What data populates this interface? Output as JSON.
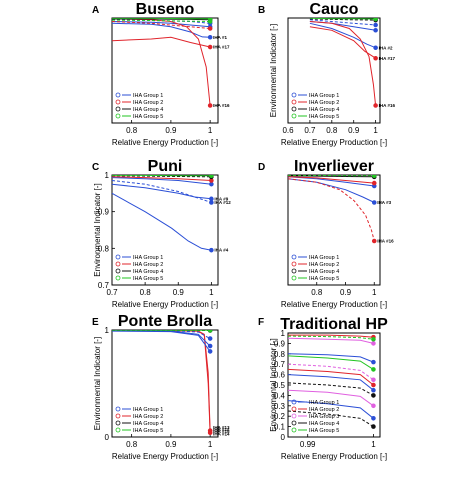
{
  "colors": {
    "group1": "#2b4fd6",
    "group2": "#e0242b",
    "group3": "#e060e0",
    "group4": "#111111",
    "group5": "#22c522"
  },
  "chart_data": [
    {
      "type": "line",
      "letter": "A",
      "title": "Buseno",
      "xlabel": "Relative Energy Production [-]",
      "ylabel": "",
      "xlim": [
        0.75,
        1.02
      ],
      "ylim": [
        0.7,
        1.0
      ],
      "xticks": [
        "0.8",
        "0.9",
        "1"
      ],
      "yticks": [],
      "legend": [
        "IHA Group 1",
        "IHA Group 2",
        "IHA Group 4",
        "IHA Group 5"
      ],
      "annotations": [
        {
          "text": "IHA #1",
          "x": 1.0,
          "y": 0.945
        },
        {
          "text": "IHA #17",
          "x": 1.0,
          "y": 0.917
        },
        {
          "text": "IHA #16",
          "x": 1.0,
          "y": 0.75
        }
      ],
      "series": [
        {
          "group": "group1",
          "x": [
            0.75,
            0.85,
            0.9,
            0.95,
            0.98,
            1.0
          ],
          "y": [
            0.985,
            0.982,
            0.975,
            0.96,
            0.946,
            0.945
          ]
        },
        {
          "group": "group1",
          "x": [
            0.75,
            0.85,
            0.9,
            0.95,
            1.0
          ],
          "y": [
            0.99,
            0.988,
            0.985,
            0.98,
            0.975
          ]
        },
        {
          "group": "group1",
          "x": [
            0.75,
            0.85,
            0.95,
            1.0
          ],
          "y": [
            0.995,
            0.993,
            0.99,
            0.985
          ]
        },
        {
          "group": "group2",
          "x": [
            0.75,
            0.85,
            0.9,
            0.94,
            0.97,
            0.99,
            1.0
          ],
          "y": [
            0.998,
            0.995,
            0.99,
            0.975,
            0.94,
            0.86,
            0.75
          ]
        },
        {
          "group": "group2",
          "x": [
            0.75,
            0.85,
            0.9,
            0.95,
            1.0
          ],
          "y": [
            0.935,
            0.94,
            0.945,
            0.93,
            0.917
          ]
        },
        {
          "group": "group2",
          "x": [
            0.75,
            0.85,
            0.95,
            1.0
          ],
          "y": [
            0.99,
            0.985,
            0.975,
            0.97
          ]
        },
        {
          "group": "group4",
          "x": [
            0.75,
            0.85,
            0.95,
            1.0
          ],
          "y": [
            0.997,
            0.997,
            0.996,
            0.995
          ]
        },
        {
          "group": "group5",
          "x": [
            0.75,
            0.85,
            0.95,
            1.0
          ],
          "y": [
            0.999,
            0.999,
            0.998,
            0.998
          ]
        },
        {
          "group": "group5",
          "x": [
            0.75,
            0.85,
            0.95,
            1.0
          ],
          "y": [
            0.994,
            0.993,
            0.991,
            0.99
          ]
        }
      ]
    },
    {
      "type": "line",
      "letter": "B",
      "title": "Cauco",
      "xlabel": "Relative Energy Production [-]",
      "ylabel": "Environmental Indicator [-]",
      "xlim": [
        0.6,
        1.02
      ],
      "ylim": [
        0.7,
        1.0
      ],
      "xticks": [
        "0.6",
        "0.7",
        "0.8",
        "0.9",
        "1"
      ],
      "yticks": [],
      "legend": [
        "IHA Group 1",
        "IHA Group 2",
        "IHA Group 4",
        "IHA Group 5"
      ],
      "annotations": [
        {
          "text": "IHA #2",
          "x": 1.0,
          "y": 0.915
        },
        {
          "text": "IHA #17",
          "x": 1.0,
          "y": 0.885
        },
        {
          "text": "IHA #16",
          "x": 1.0,
          "y": 0.75
        }
      ],
      "series": [
        {
          "group": "group1",
          "x": [
            0.7,
            0.8,
            0.9,
            0.96,
            1.0
          ],
          "y": [
            0.985,
            0.97,
            0.945,
            0.925,
            0.915
          ]
        },
        {
          "group": "group1",
          "x": [
            0.7,
            0.8,
            0.9,
            1.0
          ],
          "y": [
            0.99,
            0.985,
            0.975,
            0.965
          ]
        },
        {
          "group": "group1",
          "x": [
            0.7,
            0.8,
            0.9,
            1.0
          ],
          "y": [
            0.995,
            0.99,
            0.985,
            0.98
          ]
        },
        {
          "group": "group2",
          "x": [
            0.7,
            0.8,
            0.88,
            0.93,
            0.97,
            0.99,
            1.0
          ],
          "y": [
            0.99,
            0.985,
            0.97,
            0.94,
            0.89,
            0.81,
            0.75
          ]
        },
        {
          "group": "group2",
          "x": [
            0.7,
            0.8,
            0.9,
            0.95,
            1.0
          ],
          "y": [
            0.975,
            0.965,
            0.935,
            0.905,
            0.885
          ]
        },
        {
          "group": "group4",
          "x": [
            0.7,
            0.8,
            0.9,
            1.0
          ],
          "y": [
            0.997,
            0.996,
            0.995,
            0.994
          ]
        },
        {
          "group": "group5",
          "x": [
            0.7,
            0.8,
            0.9,
            1.0
          ],
          "y": [
            0.999,
            0.998,
            0.998,
            0.997
          ]
        }
      ]
    },
    {
      "type": "line",
      "letter": "C",
      "title": "Puni",
      "xlabel": "Relative Energy Production [-]",
      "ylabel": "Environmental Indicator [-]",
      "xlim": [
        0.7,
        1.02
      ],
      "ylim": [
        0.7,
        1.0
      ],
      "xticks": [
        "0.7",
        "0.8",
        "0.9",
        "1"
      ],
      "yticks": [
        "0.7",
        "0.8",
        "0.9",
        "1"
      ],
      "legend": [
        "IHA Group 1",
        "IHA Group 2",
        "IHA Group 4",
        "IHA Group 5"
      ],
      "annotations": [
        {
          "text": "IHA #9",
          "x": 1.0,
          "y": 0.935
        },
        {
          "text": "IHA #12",
          "x": 1.0,
          "y": 0.925
        },
        {
          "text": "IHA #4",
          "x": 1.0,
          "y": 0.795
        }
      ],
      "series": [
        {
          "group": "group1",
          "x": [
            0.7,
            0.8,
            0.88,
            0.93,
            0.97,
            1.0
          ],
          "y": [
            0.95,
            0.9,
            0.855,
            0.82,
            0.8,
            0.795
          ]
        },
        {
          "group": "group1",
          "x": [
            0.7,
            0.8,
            0.9,
            0.95,
            1.0
          ],
          "y": [
            0.975,
            0.965,
            0.95,
            0.94,
            0.935
          ]
        },
        {
          "group": "group1",
          "x": [
            0.7,
            0.8,
            0.9,
            0.95,
            1.0
          ],
          "y": [
            0.985,
            0.975,
            0.955,
            0.94,
            0.925
          ]
        },
        {
          "group": "group1",
          "x": [
            0.7,
            0.8,
            0.9,
            1.0
          ],
          "y": [
            0.993,
            0.99,
            0.985,
            0.975
          ]
        },
        {
          "group": "group2",
          "x": [
            0.7,
            0.8,
            0.9,
            1.0
          ],
          "y": [
            0.995,
            0.993,
            0.99,
            0.985
          ]
        },
        {
          "group": "group4",
          "x": [
            0.7,
            0.8,
            0.9,
            1.0
          ],
          "y": [
            0.998,
            0.997,
            0.996,
            0.995
          ]
        },
        {
          "group": "group5",
          "x": [
            0.7,
            0.8,
            0.9,
            1.0
          ],
          "y": [
            0.999,
            0.999,
            0.998,
            0.998
          ]
        }
      ]
    },
    {
      "type": "line",
      "letter": "D",
      "title": "Inverliever",
      "xlabel": "Relative Energy Production [-]",
      "ylabel": "",
      "xlim": [
        0.7,
        1.02
      ],
      "ylim": [
        0.7,
        1.0
      ],
      "xticks": [
        "0.8",
        "0.9",
        "1"
      ],
      "yticks": [],
      "legend": [
        "IHA Group 1",
        "IHA Group 2",
        "IHA Group 4",
        "IHA Group 5"
      ],
      "annotations": [
        {
          "text": "IHA #3",
          "x": 1.0,
          "y": 0.925
        },
        {
          "text": "IHA #16",
          "x": 1.0,
          "y": 0.82
        }
      ],
      "series": [
        {
          "group": "group1",
          "x": [
            0.7,
            0.8,
            0.9,
            0.96,
            1.0
          ],
          "y": [
            0.99,
            0.98,
            0.96,
            0.94,
            0.925
          ]
        },
        {
          "group": "group1",
          "x": [
            0.7,
            0.8,
            0.9,
            1.0
          ],
          "y": [
            0.995,
            0.99,
            0.98,
            0.97
          ]
        },
        {
          "group": "group2",
          "x": [
            0.7,
            0.8,
            0.88,
            0.93,
            0.97,
            0.99,
            1.0
          ],
          "y": [
            0.99,
            0.98,
            0.96,
            0.93,
            0.89,
            0.85,
            0.82
          ]
        },
        {
          "group": "group2",
          "x": [
            0.7,
            0.8,
            0.9,
            1.0
          ],
          "y": [
            0.995,
            0.992,
            0.985,
            0.978
          ]
        },
        {
          "group": "group4",
          "x": [
            0.7,
            0.8,
            0.9,
            1.0
          ],
          "y": [
            0.998,
            0.997,
            0.996,
            0.995
          ]
        },
        {
          "group": "group5",
          "x": [
            0.7,
            0.8,
            0.9,
            1.0
          ],
          "y": [
            0.999,
            0.999,
            0.998,
            0.998
          ]
        }
      ]
    },
    {
      "type": "line",
      "letter": "E",
      "title": "Ponte Brolla",
      "xlabel": "Relative Energy Production [-]",
      "ylabel": "Environmental Indicator [-]",
      "xlim": [
        0.75,
        1.02
      ],
      "ylim": [
        0.0,
        1.0
      ],
      "xticks": [
        "0.8",
        "0.9",
        "1"
      ],
      "yticks": [
        "0",
        "1"
      ],
      "legend": [
        "IHA Group 1",
        "IHA Group 2",
        "IHA Group 4",
        "IHA Group 5"
      ],
      "annotations": [
        {
          "text": "IHA #13",
          "x": 1.0,
          "y": 0.09
        },
        {
          "text": "IHA #14",
          "x": 1.0,
          "y": 0.07
        },
        {
          "text": "IHA #15",
          "x": 1.0,
          "y": 0.05
        },
        {
          "text": "IHA #14",
          "x": 1.0,
          "y": 0.03
        }
      ],
      "series": [
        {
          "group": "group2",
          "x": [
            0.75,
            0.9,
            0.97,
            0.985,
            0.995,
            1.0
          ],
          "y": [
            0.995,
            0.993,
            0.99,
            0.96,
            0.6,
            0.06
          ]
        },
        {
          "group": "group2",
          "x": [
            0.75,
            0.9,
            0.97,
            0.985,
            0.995,
            1.0
          ],
          "y": [
            0.995,
            0.993,
            0.99,
            0.95,
            0.5,
            0.04
          ]
        },
        {
          "group": "group1",
          "x": [
            0.75,
            0.9,
            0.97,
            1.0
          ],
          "y": [
            0.995,
            0.993,
            0.98,
            0.92
          ]
        },
        {
          "group": "group1",
          "x": [
            0.75,
            0.9,
            0.97,
            1.0
          ],
          "y": [
            0.995,
            0.99,
            0.96,
            0.85
          ]
        },
        {
          "group": "group1",
          "x": [
            0.75,
            0.9,
            0.97,
            1.0
          ],
          "y": [
            0.99,
            0.985,
            0.95,
            0.8
          ]
        },
        {
          "group": "group4",
          "x": [
            0.75,
            0.9,
            1.0
          ],
          "y": [
            0.998,
            0.997,
            0.995
          ]
        },
        {
          "group": "group5",
          "x": [
            0.75,
            0.9,
            1.0
          ],
          "y": [
            0.999,
            0.998,
            0.997
          ]
        }
      ]
    },
    {
      "type": "line",
      "letter": "F",
      "title": "Traditional HP",
      "xlabel": "Relative Energy Production [-]",
      "ylabel": "Environmental Indicator [-]",
      "xlim": [
        0.987,
        1.001
      ],
      "ylim": [
        0.0,
        1.0
      ],
      "xticks": [
        "0.99",
        "1"
      ],
      "yticks": [
        "0",
        "0.1",
        "0.2",
        "0.3",
        "0.4",
        "0.5",
        "0.6",
        "0.7",
        "0.8",
        "0.9",
        "1"
      ],
      "legend": [
        "IHA Group 1",
        "IHA Group 2",
        "IHA Group 3",
        "IHA Group 4",
        "IHA Group 5"
      ],
      "annotations": [],
      "series": [
        {
          "group": "group2",
          "x": [
            0.987,
            0.993,
            0.998,
            1.0
          ],
          "y": [
            0.98,
            0.98,
            0.97,
            0.96
          ]
        },
        {
          "group": "group3",
          "x": [
            0.987,
            0.993,
            0.998,
            1.0
          ],
          "y": [
            0.95,
            0.94,
            0.93,
            0.9
          ]
        },
        {
          "group": "group5",
          "x": [
            0.987,
            0.993,
            0.998,
            1.0
          ],
          "y": [
            0.97,
            0.965,
            0.955,
            0.94
          ]
        },
        {
          "group": "group1",
          "x": [
            0.987,
            0.993,
            0.998,
            1.0
          ],
          "y": [
            0.8,
            0.79,
            0.77,
            0.72
          ]
        },
        {
          "group": "group5",
          "x": [
            0.987,
            0.993,
            0.998,
            1.0
          ],
          "y": [
            0.78,
            0.76,
            0.73,
            0.65
          ]
        },
        {
          "group": "group3",
          "x": [
            0.987,
            0.993,
            0.998,
            1.0
          ],
          "y": [
            0.7,
            0.68,
            0.64,
            0.55
          ]
        },
        {
          "group": "group2",
          "x": [
            0.987,
            0.993,
            0.998,
            1.0
          ],
          "y": [
            0.65,
            0.63,
            0.6,
            0.5
          ]
        },
        {
          "group": "group1",
          "x": [
            0.987,
            0.993,
            0.998,
            1.0
          ],
          "y": [
            0.6,
            0.58,
            0.55,
            0.45
          ]
        },
        {
          "group": "group4",
          "x": [
            0.987,
            0.993,
            0.998,
            1.0
          ],
          "y": [
            0.52,
            0.5,
            0.47,
            0.4
          ]
        },
        {
          "group": "group3",
          "x": [
            0.987,
            0.993,
            0.998,
            1.0
          ],
          "y": [
            0.45,
            0.43,
            0.39,
            0.3
          ]
        },
        {
          "group": "group1",
          "x": [
            0.987,
            0.993,
            0.998,
            1.0
          ],
          "y": [
            0.35,
            0.32,
            0.28,
            0.18
          ]
        },
        {
          "group": "group4",
          "x": [
            0.987,
            0.993,
            0.998,
            1.0
          ],
          "y": [
            0.25,
            0.22,
            0.18,
            0.1
          ]
        }
      ]
    }
  ]
}
